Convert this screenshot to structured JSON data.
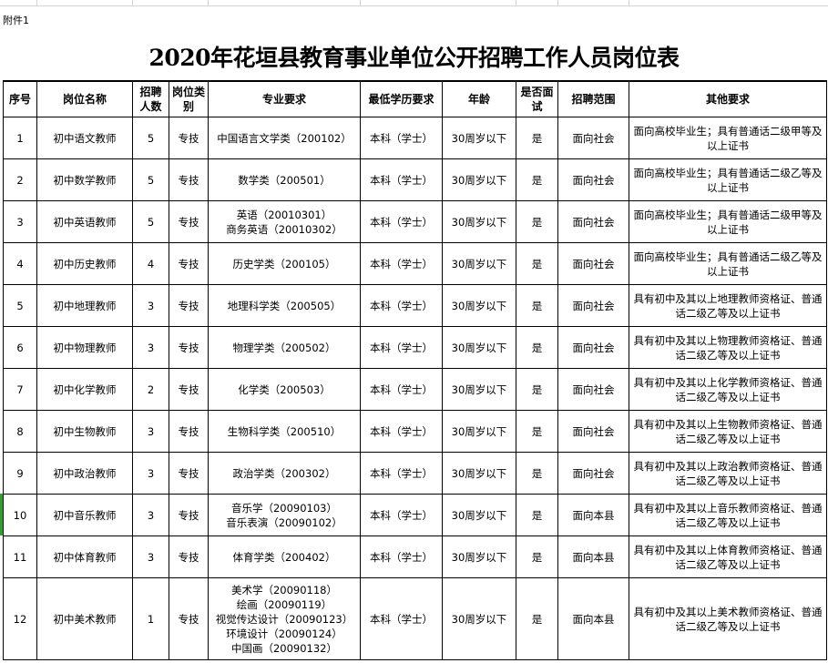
{
  "annex": "附件1",
  "title": "2020年花垣县教育事业单位公开招聘工作人员岗位表",
  "headers": [
    "序号",
    "岗位名称",
    "招聘人数",
    "岗位类别",
    "专业要求",
    "最低学历要求",
    "年龄",
    "是否面试",
    "招聘范围",
    "其他要求"
  ],
  "rows": [
    [
      "1",
      "初中语文教师",
      "5",
      "专技",
      "中国语言文学类（200102）",
      "本科（学士）",
      "30周岁以下",
      "是",
      "面向社会",
      "面向高校毕业生；具有普通话二级甲等及以上证书"
    ],
    [
      "2",
      "初中数学教师",
      "5",
      "专技",
      "数学类（200501）",
      "本科（学士）",
      "30周岁以下",
      "是",
      "面向社会",
      "面向高校毕业生；具有普通话二级乙等及以上证书"
    ],
    [
      "3",
      "初中英语教师",
      "5",
      "专技",
      "英语（20010301）\n商务英语（20010302）",
      "本科（学士）",
      "30周岁以下",
      "是",
      "面向社会",
      "面向高校毕业生；具有普通话二级甲等及以上证书"
    ],
    [
      "4",
      "初中历史教师",
      "4",
      "专技",
      "历史学类（200105）",
      "本科（学士）",
      "30周岁以下",
      "是",
      "面向社会",
      "面向高校毕业生；具有普通话二级乙等及以上证书"
    ],
    [
      "5",
      "初中地理教师",
      "3",
      "专技",
      "地理科学类（200505）",
      "本科（学士）",
      "30周岁以下",
      "是",
      "面向社会",
      "具有初中及其以上地理教师资格证、普通话二级乙等及以上证书"
    ],
    [
      "6",
      "初中物理教师",
      "3",
      "专技",
      "物理学类（200502）",
      "本科（学士）",
      "30周岁以下",
      "是",
      "面向社会",
      "具有初中及其以上物理教师资格证、普通话二级乙等及以上证书"
    ],
    [
      "7",
      "初中化学教师",
      "2",
      "专技",
      "化学类（200503）",
      "本科（学士）",
      "30周岁以下",
      "是",
      "面向社会",
      "具有初中及其以上化学教师资格证、普通话二级乙等及以上证书"
    ],
    [
      "8",
      "初中生物教师",
      "3",
      "专技",
      "生物科学类（200510）",
      "本科（学士）",
      "30周岁以下",
      "是",
      "面向社会",
      "具有初中及其以上生物教师资格证、普通话二级乙等及以上证书"
    ],
    [
      "9",
      "初中政治教师",
      "3",
      "专技",
      "政治学类（200302）",
      "本科（学士）",
      "30周岁以下",
      "是",
      "面向社会",
      "具有初中及其以上政治教师资格证、普通话二级乙等及以上证书"
    ],
    [
      "10",
      "初中音乐教师",
      "3",
      "专技",
      "音乐学（20090103）\n音乐表演（20090102）",
      "本科（学士）",
      "30周岁以下",
      "是",
      "面向本县",
      "具有初中及其以上音乐教师资格证、普通话二级乙等及以上证书"
    ],
    [
      "11",
      "初中体育教师",
      "3",
      "专技",
      "体育学类（200402）",
      "本科（学士）",
      "30周岁以下",
      "是",
      "面向本县",
      "具有初中及其以上体育教师资格证、普通话二级乙等及以上证书"
    ],
    [
      "12",
      "初中美术教师",
      "1",
      "专技",
      "美术学（20090118）\n绘画（20090119）\n视觉传达设计（20090123）\n环境设计（20090124）\n中国画（20090132）",
      "本科（学士）",
      "30周岁以下",
      "是",
      "面向本县",
      "具有初中及其以上美术教师资格证、普通话二级乙等及以上证书"
    ]
  ]
}
